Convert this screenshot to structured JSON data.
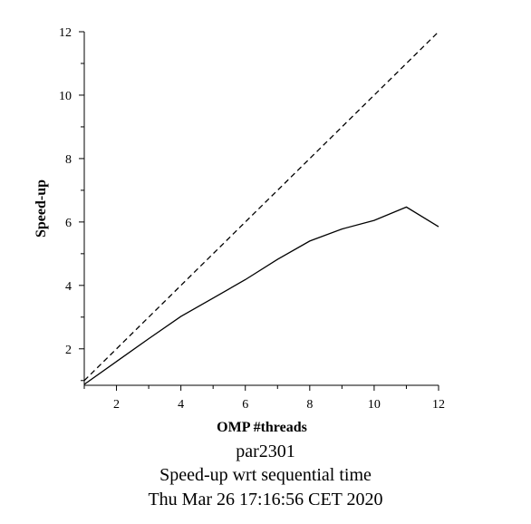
{
  "chart_data": {
    "type": "line",
    "xlabel": "OMP #threads",
    "ylabel": "Speed-up",
    "xlim": [
      1,
      12
    ],
    "ylim": [
      0.85,
      12
    ],
    "xticks": [
      2,
      4,
      6,
      8,
      10,
      12
    ],
    "yticks": [
      2,
      4,
      6,
      8,
      10,
      12
    ],
    "grid": false,
    "series": [
      {
        "style": "solid",
        "x": [
          1,
          2,
          3,
          4,
          5,
          6,
          7,
          8,
          9,
          10,
          11,
          12
        ],
        "y": [
          0.88,
          1.6,
          2.32,
          3.02,
          3.6,
          4.18,
          4.82,
          5.4,
          5.78,
          6.05,
          6.47,
          5.85
        ]
      },
      {
        "style": "dashed",
        "x": [
          1,
          12
        ],
        "y": [
          1,
          12
        ]
      }
    ]
  },
  "captions": {
    "line1": "par2301",
    "line2": "Speed-up wrt sequential time",
    "line3": "Thu Mar 26 17:16:56 CET 2020"
  }
}
